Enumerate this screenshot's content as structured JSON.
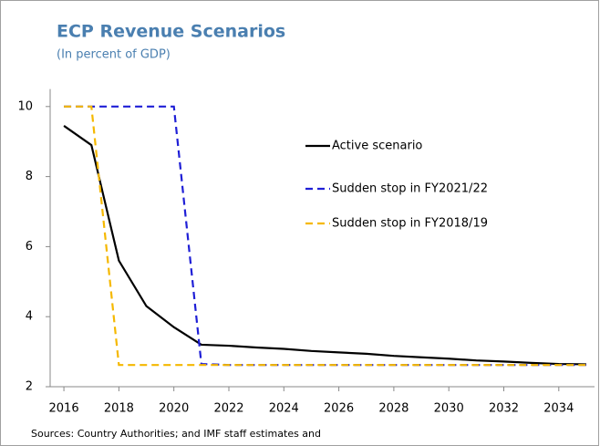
{
  "chart_data": {
    "type": "line",
    "title": "ECP Revenue Scenarios",
    "subtitle": "(In percent of GDP)",
    "source": "Sources: Country Authorities; and IMF staff estimates and",
    "x": [
      2016,
      2017,
      2018,
      2019,
      2020,
      2021,
      2022,
      2023,
      2024,
      2025,
      2026,
      2027,
      2028,
      2029,
      2030,
      2031,
      2032,
      2033,
      2034,
      2035
    ],
    "series": [
      {
        "name": "Active scenario",
        "color": "#000000",
        "dash": "solid",
        "values": [
          9.45,
          8.9,
          5.6,
          4.3,
          3.7,
          3.2,
          3.17,
          3.12,
          3.08,
          3.02,
          2.98,
          2.94,
          2.88,
          2.84,
          2.8,
          2.75,
          2.72,
          2.68,
          2.65,
          2.64
        ]
      },
      {
        "name": "Sudden stop in FY2021/22",
        "color": "#1f1fd6",
        "dash": "dashed",
        "values": [
          10,
          10,
          10,
          10,
          10,
          2.65,
          2.62,
          2.62,
          2.62,
          2.62,
          2.62,
          2.62,
          2.62,
          2.62,
          2.62,
          2.62,
          2.62,
          2.62,
          2.62,
          2.62
        ]
      },
      {
        "name": "Sudden stop in FY2018/19",
        "color": "#f5b800",
        "dash": "dashed",
        "values": [
          10,
          10,
          2.62,
          2.62,
          2.62,
          2.62,
          2.62,
          2.62,
          2.62,
          2.62,
          2.62,
          2.62,
          2.62,
          2.62,
          2.62,
          2.62,
          2.62,
          2.62,
          2.62,
          2.62
        ]
      }
    ],
    "xlim": [
      2015.5,
      2035.3
    ],
    "xticks": [
      2016,
      2018,
      2020,
      2022,
      2024,
      2026,
      2028,
      2030,
      2032,
      2034
    ],
    "ylim": [
      2,
      10.5
    ],
    "yticks": [
      2,
      4,
      6,
      8,
      10
    ],
    "grid": false
  }
}
